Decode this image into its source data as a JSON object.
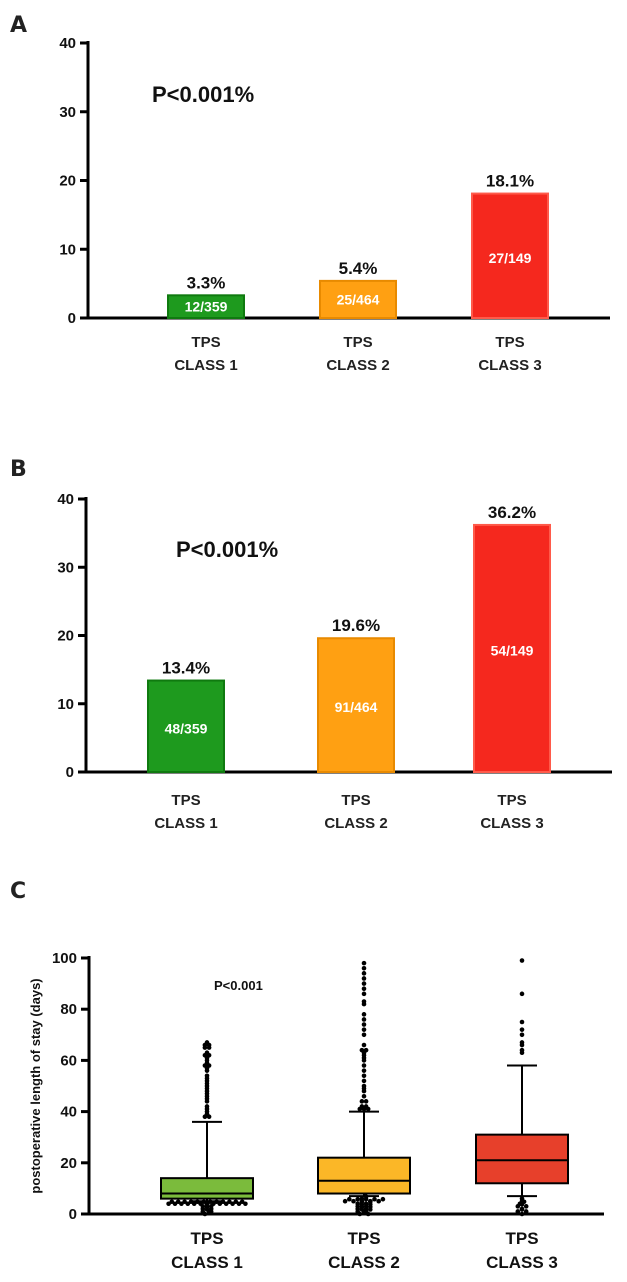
{
  "chart_data": [
    {
      "panel_label": "A",
      "type": "bar",
      "categories": [
        [
          "TPS",
          "CLASS 1"
        ],
        [
          "TPS",
          "CLASS 2"
        ],
        [
          "TPS",
          "CLASS 3"
        ]
      ],
      "values": [
        3.3,
        5.4,
        18.1
      ],
      "value_labels": [
        "3.3%",
        "5.4%",
        "18.1%"
      ],
      "inner_labels": [
        "12/359",
        "25/464",
        "27/149"
      ],
      "annotation": "P<0.001%",
      "ylim": [
        0,
        40
      ],
      "yticks": [
        "0",
        "10",
        "20",
        "30",
        "40"
      ],
      "colors": [
        "#1e9a1e",
        "#ffa012",
        "#f5281e"
      ],
      "border_colors": [
        "#0f7a0f",
        "#e88a00",
        "#ff5a4a"
      ]
    },
    {
      "panel_label": "B",
      "type": "bar",
      "categories": [
        [
          "TPS",
          "CLASS 1"
        ],
        [
          "TPS",
          "CLASS 2"
        ],
        [
          "TPS",
          "CLASS 3"
        ]
      ],
      "values": [
        13.4,
        19.6,
        36.2
      ],
      "value_labels": [
        "13.4%",
        "19.6%",
        "36.2%"
      ],
      "inner_labels": [
        "48/359",
        "91/464",
        "54/149"
      ],
      "annotation": "P<0.001%",
      "ylim": [
        0,
        40
      ],
      "yticks": [
        "0",
        "10",
        "20",
        "30",
        "40"
      ],
      "colors": [
        "#1e9a1e",
        "#ffa012",
        "#f5281e"
      ],
      "border_colors": [
        "#0f7a0f",
        "#e88a00",
        "#ff5a4a"
      ]
    },
    {
      "panel_label": "C",
      "type": "box",
      "ylabel": "postoperative length of stay (days)",
      "annotation": "P<0.001",
      "ylim": [
        0,
        100
      ],
      "yticks": [
        "0",
        "20",
        "40",
        "60",
        "80",
        "100"
      ],
      "categories": [
        [
          "TPS",
          "CLASS 1"
        ],
        [
          "TPS",
          "CLASS 2"
        ],
        [
          "TPS",
          "CLASS 3"
        ]
      ],
      "colors": [
        "#7bbb3c",
        "#fbb727",
        "#e7402b"
      ],
      "boxes": [
        {
          "whisker_low": 5,
          "q1": 6,
          "median": 8,
          "q3": 14,
          "whisker_high": 36,
          "outliers": [
            0,
            0,
            1,
            1,
            1,
            2,
            2,
            2,
            3,
            3,
            3,
            4,
            4,
            4,
            4,
            4,
            4,
            4,
            4,
            4,
            4,
            4,
            4,
            4,
            4,
            4,
            4,
            4,
            4,
            4,
            4,
            4,
            4,
            4,
            4,
            4,
            38,
            38,
            39,
            40,
            41,
            42,
            44,
            45,
            46,
            47,
            48,
            49,
            50,
            51,
            52,
            53,
            54,
            56,
            57,
            58,
            58,
            59,
            60,
            61,
            62,
            62,
            63,
            65,
            65,
            66,
            66,
            67
          ]
        },
        {
          "whisker_low": 7,
          "q1": 8,
          "median": 13,
          "q3": 22,
          "whisker_high": 40,
          "outliers": [
            0,
            0,
            0,
            1,
            1,
            1,
            1,
            2,
            2,
            2,
            2,
            3,
            3,
            3,
            3,
            4,
            4,
            4,
            4,
            5,
            5,
            5,
            5,
            5,
            5,
            5,
            5,
            5,
            5,
            6,
            6,
            41,
            41,
            41,
            42,
            42,
            44,
            44,
            46,
            48,
            49,
            50,
            52,
            54,
            56,
            58,
            60,
            61,
            62,
            63,
            64,
            64,
            66,
            70,
            72,
            74,
            76,
            78,
            82,
            83,
            86,
            88,
            90,
            92,
            94,
            96,
            98
          ]
        },
        {
          "whisker_low": 7,
          "q1": 12,
          "median": 21,
          "q3": 31,
          "whisker_high": 58,
          "outliers": [
            0,
            1,
            1,
            1,
            2,
            3,
            3,
            3,
            4,
            4,
            5,
            6,
            63,
            64,
            66,
            67,
            70,
            72,
            75,
            86,
            99
          ]
        }
      ]
    }
  ]
}
